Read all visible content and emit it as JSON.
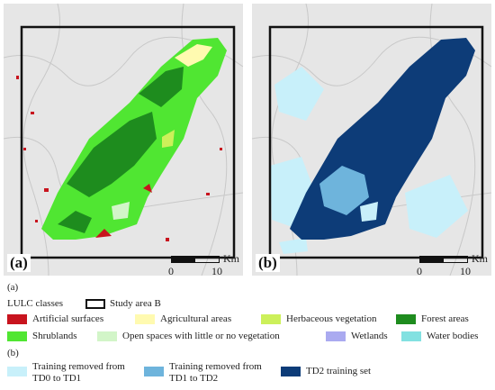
{
  "panels": [
    {
      "tag": "(a)",
      "scale_ticks": [
        "0",
        "10"
      ],
      "scale_unit": "Km"
    },
    {
      "tag": "(b)",
      "scale_ticks": [
        "0",
        "10"
      ],
      "scale_unit": "Km"
    }
  ],
  "legend_a": {
    "heading": "(a)",
    "title": "LULC classes",
    "study_area_label": "Study area B",
    "items": [
      {
        "label": "Artificial surfaces",
        "color": "#c8141e"
      },
      {
        "label": "Agricultural areas",
        "color": "#fffab0"
      },
      {
        "label": "Herbaceous vegetation",
        "color": "#ccf05a"
      },
      {
        "label": "Forest areas",
        "color": "#1e8c1e"
      },
      {
        "label": "Shrublands",
        "color": "#50e632"
      },
      {
        "label": "Open spaces with little or no vegetation",
        "color": "#d2f5c8"
      },
      {
        "label": "Wetlands",
        "color": "#aaaaf0"
      },
      {
        "label": "Water bodies",
        "color": "#82e1e1"
      }
    ]
  },
  "legend_b": {
    "heading": "(b)",
    "items": [
      {
        "label": "Training removed from TD0 to TD1",
        "color": "#c8f0fa"
      },
      {
        "label": "Training removed from TD1 to TD2",
        "color": "#6eb4dc"
      },
      {
        "label": "TD2 training set",
        "color": "#0d3c78"
      }
    ]
  }
}
